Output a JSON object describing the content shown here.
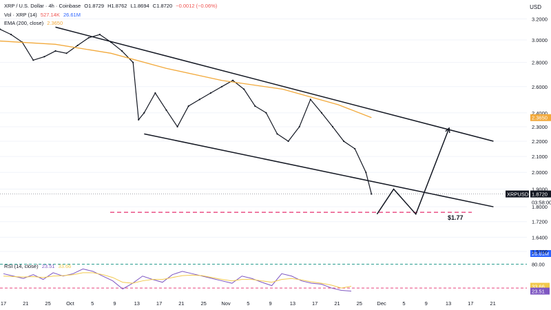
{
  "header": {
    "symbol_line": "XRP / U.S. Dollar · 4h · Coinbase",
    "open": "O1.8729",
    "high": "H1.8762",
    "low": "L1.8694",
    "close": "C1.8720",
    "change": "−0.0012 (−0.06%)",
    "vol_label": "Vol · XRP (14)",
    "vol_value_1": "527.14K",
    "vol_value_2": "26.61M",
    "ema_label": "EMA (200, close)",
    "ema_value": "2.3650",
    "rsi_label": "RSI (14, close)",
    "rsi_value_1": "23.51",
    "rsi_value_2": "33.66",
    "currency": "USD"
  },
  "colors": {
    "up": "#26a69a",
    "down": "#ef5350",
    "candle": "#131722",
    "ema": "#f2a93b",
    "rsi": "#7e57c2",
    "rsi_ma": "#f2c94c",
    "target_line": "#e8437c",
    "rsi_upper": "#2a9d8f"
  },
  "chart_data": [
    {
      "type": "line",
      "title": "XRP / U.S. Dollar · 4h · Coinbase",
      "x_ticks": [
        "17",
        "21",
        "25",
        "Oct",
        "5",
        "9",
        "13",
        "17",
        "21",
        "25",
        "Nov",
        "5",
        "9",
        "13",
        "17",
        "21",
        "25",
        "Dec",
        "5",
        "9",
        "13",
        "17",
        "21"
      ],
      "y_ticks": [
        3.2,
        3.0,
        2.8,
        2.6,
        2.4,
        2.3,
        2.2,
        2.1,
        2.0,
        1.9,
        1.8,
        1.72,
        1.64,
        1.57
      ],
      "y_tick_labels": [
        "3.2000",
        "3.0000",
        "2.8000",
        "2.6000",
        "2.4000",
        "2.3000",
        "2.2000",
        "2.1000",
        "2.0000",
        "1.9000",
        "1.8000",
        "1.7200",
        "1.6400",
        "1.5700"
      ],
      "ylim": [
        1.57,
        3.25
      ],
      "scale": "log",
      "price_series": {
        "name": "XRPUSD",
        "dates": [
          "Sep 15",
          "Sep 17",
          "Sep 19",
          "Sep 21",
          "Sep 23",
          "Sep 25",
          "Sep 27",
          "Sep 29",
          "Oct 1",
          "Oct 3",
          "Oct 5",
          "Oct 7",
          "Oct 9",
          "Oct 10",
          "Oct 11",
          "Oct 13",
          "Oct 15",
          "Oct 17",
          "Oct 19",
          "Oct 21",
          "Oct 23",
          "Oct 25",
          "Oct 27",
          "Oct 29",
          "Oct 31",
          "Nov 2",
          "Nov 4",
          "Nov 6",
          "Nov 8",
          "Nov 10",
          "Nov 12",
          "Nov 14",
          "Nov 16",
          "Nov 18",
          "Nov 20",
          "Nov 21"
        ],
        "values": [
          3.1,
          3.05,
          2.98,
          2.82,
          2.85,
          2.9,
          2.88,
          2.95,
          3.02,
          3.05,
          2.98,
          2.9,
          2.8,
          2.35,
          2.4,
          2.55,
          2.42,
          2.3,
          2.45,
          2.5,
          2.55,
          2.6,
          2.65,
          2.58,
          2.45,
          2.4,
          2.25,
          2.2,
          2.3,
          2.5,
          2.4,
          2.3,
          2.2,
          2.15,
          2.0,
          1.872
        ]
      },
      "ema_series": {
        "name": "EMA (200, close)",
        "dates": [
          "Sep 15",
          "Sep 25",
          "Oct 5",
          "Oct 15",
          "Oct 25",
          "Nov 5",
          "Nov 15",
          "Nov 21"
        ],
        "values": [
          2.99,
          2.96,
          2.88,
          2.75,
          2.65,
          2.58,
          2.46,
          2.365
        ]
      },
      "price_labels": [
        {
          "label": "2.3650",
          "value": 2.365,
          "color": "#f2a93b"
        },
        {
          "label": "XRPUSD",
          "value": 1.872,
          "color": "#131722"
        },
        {
          "label": "1.8720",
          "value": 1.872,
          "color": "#131722"
        },
        {
          "label": "03:58:00",
          "value": 1.845,
          "color": "#131722"
        }
      ],
      "annotations": [
        "$1.77"
      ],
      "trendlines": {
        "upper": [
          {
            "date": "Sep 25",
            "value": 3.12
          },
          {
            "date": "Dec 13",
            "value": 2.2
          }
        ],
        "lower": [
          {
            "date": "Oct 11",
            "value": 2.25
          },
          {
            "date": "Dec 13",
            "value": 1.8
          }
        ],
        "support": 1.77
      },
      "projection": [
        {
          "date": "Nov 22",
          "value": 1.76
        },
        {
          "date": "Nov 25",
          "value": 1.9
        },
        {
          "date": "Nov 29",
          "value": 1.76
        },
        {
          "date": "Dec 5",
          "value": 2.29
        }
      ]
    },
    {
      "type": "bar",
      "title": "Vol · XRP (14)",
      "labels": [
        "26.61M"
      ]
    },
    {
      "type": "line",
      "title": "RSI (14, close)",
      "y_tick_labels": [
        "80.00",
        "33.66",
        "23.51"
      ],
      "levels": [
        80,
        30
      ],
      "series": [
        {
          "name": "RSI",
          "values": [
            60,
            55,
            50,
            58,
            48,
            62,
            55,
            60,
            70,
            65,
            55,
            45,
            28,
            40,
            55,
            48,
            42,
            58,
            65,
            60,
            55,
            50,
            45,
            40,
            55,
            50,
            42,
            35,
            60,
            55,
            45,
            40,
            38,
            30,
            25,
            23.51
          ]
        },
        {
          "name": "RSI MA",
          "values": [
            55,
            54,
            53,
            54,
            52,
            55,
            56,
            58,
            62,
            62,
            58,
            52,
            42,
            40,
            45,
            48,
            48,
            52,
            56,
            57,
            56,
            52,
            48,
            45,
            48,
            48,
            45,
            42,
            48,
            50,
            47,
            43,
            40,
            36,
            30,
            33.66
          ]
        }
      ]
    }
  ]
}
